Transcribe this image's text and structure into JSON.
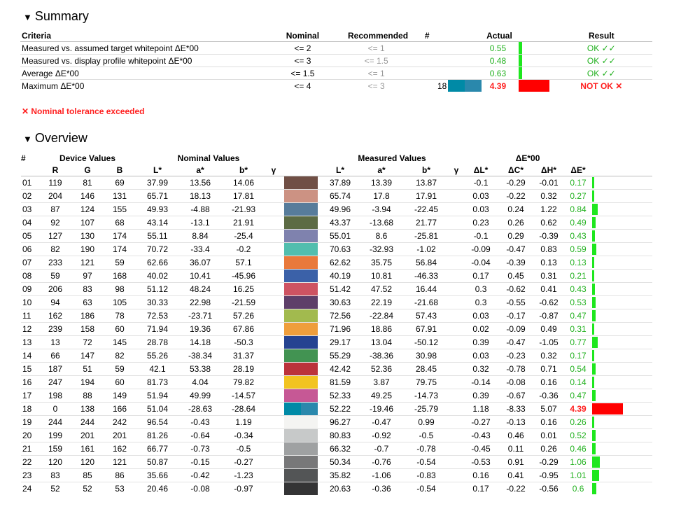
{
  "summary": {
    "title": "Summary",
    "headers": [
      "Criteria",
      "Nominal",
      "Recommended",
      "#",
      "Actual",
      "Result"
    ],
    "rows": [
      {
        "criteria": "Measured vs. assumed target whitepoint ΔE*00",
        "nominal": "<= 2",
        "recommended": "<= 1",
        "num": "",
        "actual": "0.55",
        "result": "OK ✓✓",
        "pass": true,
        "bar_fraction": 0.12,
        "swatch": ""
      },
      {
        "criteria": "Measured vs. display profile whitepoint ΔE*00",
        "nominal": "<= 3",
        "recommended": "<= 1.5",
        "num": "",
        "actual": "0.48",
        "result": "OK ✓✓",
        "pass": true,
        "bar_fraction": 0.12,
        "swatch": ""
      },
      {
        "criteria": "Average ΔE*00",
        "nominal": "<= 1.5",
        "recommended": "<= 1",
        "num": "",
        "actual": "0.63",
        "result": "OK ✓✓",
        "pass": true,
        "bar_fraction": 0.12,
        "swatch": ""
      },
      {
        "criteria": "Maximum ΔE*00",
        "nominal": "<= 4",
        "recommended": "<= 3",
        "num": "18",
        "actual": "4.39",
        "result": "NOT OK ✕",
        "pass": false,
        "bar_fraction": 1.0,
        "swatch": "#1f8aa8"
      }
    ],
    "tolerance_message": "✕ Nominal tolerance exceeded"
  },
  "overview": {
    "title": "Overview",
    "group_headers": {
      "num": "#",
      "device": "Device Values",
      "nominal": "Nominal Values",
      "measured": "Measured Values",
      "delta": "ΔE*00"
    },
    "sub_headers": [
      "R",
      "G",
      "B",
      "L*",
      "a*",
      "b*",
      "γ",
      "L*",
      "a*",
      "b*",
      "γ",
      "ΔL*",
      "ΔC*",
      "ΔH*",
      "ΔE*"
    ],
    "rows": [
      {
        "id": "01",
        "r": "119",
        "g": "81",
        "b": "69",
        "nl": "37.99",
        "na": "13.56",
        "nb": "14.06",
        "ml": "37.89",
        "ma": "13.39",
        "mb": "13.87",
        "dl": "-0.1",
        "dc": "-0.29",
        "dh": "-0.01",
        "de": "0.17",
        "color": "#704f45",
        "de_value": 0.17
      },
      {
        "id": "02",
        "r": "204",
        "g": "146",
        "b": "131",
        "nl": "65.71",
        "na": "18.13",
        "nb": "17.81",
        "ml": "65.74",
        "ma": "17.8",
        "mb": "17.91",
        "dl": "0.03",
        "dc": "-0.22",
        "dh": "0.32",
        "de": "0.27",
        "color": "#cc9283",
        "de_value": 0.27
      },
      {
        "id": "03",
        "r": "87",
        "g": "124",
        "b": "155",
        "nl": "49.93",
        "na": "-4.88",
        "nb": "-21.93",
        "ml": "49.96",
        "ma": "-3.94",
        "mb": "-22.45",
        "dl": "0.03",
        "dc": "0.24",
        "dh": "1.22",
        "de": "0.84",
        "color": "#577c9b",
        "de_value": 0.84
      },
      {
        "id": "04",
        "r": "92",
        "g": "107",
        "b": "68",
        "nl": "43.14",
        "na": "-13.1",
        "nb": "21.91",
        "ml": "43.37",
        "ma": "-13.68",
        "mb": "21.77",
        "dl": "0.23",
        "dc": "0.26",
        "dh": "0.62",
        "de": "0.49",
        "color": "#5c6b44",
        "de_value": 0.49
      },
      {
        "id": "05",
        "r": "127",
        "g": "130",
        "b": "174",
        "nl": "55.11",
        "na": "8.84",
        "nb": "-25.4",
        "ml": "55.01",
        "ma": "8.6",
        "mb": "-25.81",
        "dl": "-0.1",
        "dc": "0.29",
        "dh": "-0.39",
        "de": "0.43",
        "color": "#7f82ae",
        "de_value": 0.43
      },
      {
        "id": "06",
        "r": "82",
        "g": "190",
        "b": "174",
        "nl": "70.72",
        "na": "-33.4",
        "nb": "-0.2",
        "ml": "70.63",
        "ma": "-32.93",
        "mb": "-1.02",
        "dl": "-0.09",
        "dc": "-0.47",
        "dh": "0.83",
        "de": "0.59",
        "color": "#52beae",
        "de_value": 0.59
      },
      {
        "id": "07",
        "r": "233",
        "g": "121",
        "b": "59",
        "nl": "62.66",
        "na": "36.07",
        "nb": "57.1",
        "ml": "62.62",
        "ma": "35.75",
        "mb": "56.84",
        "dl": "-0.04",
        "dc": "-0.39",
        "dh": "0.13",
        "de": "0.13",
        "color": "#e9793b",
        "de_value": 0.13
      },
      {
        "id": "08",
        "r": "59",
        "g": "97",
        "b": "168",
        "nl": "40.02",
        "na": "10.41",
        "nb": "-45.96",
        "ml": "40.19",
        "ma": "10.81",
        "mb": "-46.33",
        "dl": "0.17",
        "dc": "0.45",
        "dh": "0.31",
        "de": "0.21",
        "color": "#3b61a8",
        "de_value": 0.21
      },
      {
        "id": "09",
        "r": "206",
        "g": "83",
        "b": "98",
        "nl": "51.12",
        "na": "48.24",
        "nb": "16.25",
        "ml": "51.42",
        "ma": "47.52",
        "mb": "16.44",
        "dl": "0.3",
        "dc": "-0.62",
        "dh": "0.41",
        "de": "0.43",
        "color": "#ce5362",
        "de_value": 0.43
      },
      {
        "id": "10",
        "r": "94",
        "g": "63",
        "b": "105",
        "nl": "30.33",
        "na": "22.98",
        "nb": "-21.59",
        "ml": "30.63",
        "ma": "22.19",
        "mb": "-21.68",
        "dl": "0.3",
        "dc": "-0.55",
        "dh": "-0.62",
        "de": "0.53",
        "color": "#5e3f69",
        "de_value": 0.53
      },
      {
        "id": "11",
        "r": "162",
        "g": "186",
        "b": "78",
        "nl": "72.53",
        "na": "-23.71",
        "nb": "57.26",
        "ml": "72.56",
        "ma": "-22.84",
        "mb": "57.43",
        "dl": "0.03",
        "dc": "-0.17",
        "dh": "-0.87",
        "de": "0.47",
        "color": "#a2ba4e",
        "de_value": 0.47
      },
      {
        "id": "12",
        "r": "239",
        "g": "158",
        "b": "60",
        "nl": "71.94",
        "na": "19.36",
        "nb": "67.86",
        "ml": "71.96",
        "ma": "18.86",
        "mb": "67.91",
        "dl": "0.02",
        "dc": "-0.09",
        "dh": "0.49",
        "de": "0.31",
        "color": "#ef9e3c",
        "de_value": 0.31
      },
      {
        "id": "13",
        "r": "13",
        "g": "72",
        "b": "145",
        "nl": "28.78",
        "na": "14.18",
        "nb": "-50.3",
        "ml": "29.17",
        "ma": "13.04",
        "mb": "-50.12",
        "dl": "0.39",
        "dc": "-0.47",
        "dh": "-1.05",
        "de": "0.77",
        "color": "#254391",
        "de_value": 0.77
      },
      {
        "id": "14",
        "r": "66",
        "g": "147",
        "b": "82",
        "nl": "55.26",
        "na": "-38.34",
        "nb": "31.37",
        "ml": "55.29",
        "ma": "-38.36",
        "mb": "30.98",
        "dl": "0.03",
        "dc": "-0.23",
        "dh": "0.32",
        "de": "0.17",
        "color": "#429352",
        "de_value": 0.17
      },
      {
        "id": "15",
        "r": "187",
        "g": "51",
        "b": "59",
        "nl": "42.1",
        "na": "53.38",
        "nb": "28.19",
        "ml": "42.42",
        "ma": "52.36",
        "mb": "28.45",
        "dl": "0.32",
        "dc": "-0.78",
        "dh": "0.71",
        "de": "0.54",
        "color": "#bb333b",
        "de_value": 0.54
      },
      {
        "id": "16",
        "r": "247",
        "g": "194",
        "b": "60",
        "nl": "81.73",
        "na": "4.04",
        "nb": "79.82",
        "ml": "81.59",
        "ma": "3.87",
        "mb": "79.75",
        "dl": "-0.14",
        "dc": "-0.08",
        "dh": "0.16",
        "de": "0.14",
        "color": "#f2c420",
        "de_value": 0.14
      },
      {
        "id": "17",
        "r": "198",
        "g": "88",
        "b": "149",
        "nl": "51.94",
        "na": "49.99",
        "nb": "-14.57",
        "ml": "52.33",
        "ma": "49.25",
        "mb": "-14.73",
        "dl": "0.39",
        "dc": "-0.67",
        "dh": "-0.36",
        "de": "0.47",
        "color": "#c65895",
        "de_value": 0.47
      },
      {
        "id": "18",
        "r": "0",
        "g": "138",
        "b": "166",
        "nl": "51.04",
        "na": "-28.63",
        "nb": "-28.64",
        "ml": "52.22",
        "ma": "-19.46",
        "mb": "-25.79",
        "dl": "1.18",
        "dc": "-8.33",
        "dh": "5.07",
        "de": "4.39",
        "color": "#008aa6",
        "color2": "#2a88ac",
        "de_value": 4.39
      },
      {
        "id": "19",
        "r": "244",
        "g": "244",
        "b": "242",
        "nl": "96.54",
        "na": "-0.43",
        "nb": "1.19",
        "ml": "96.27",
        "ma": "-0.47",
        "mb": "0.99",
        "dl": "-0.27",
        "dc": "-0.13",
        "dh": "0.16",
        "de": "0.26",
        "color": "#f4f4f2",
        "de_value": 0.26
      },
      {
        "id": "20",
        "r": "199",
        "g": "201",
        "b": "201",
        "nl": "81.26",
        "na": "-0.64",
        "nb": "-0.34",
        "ml": "80.83",
        "ma": "-0.92",
        "mb": "-0.5",
        "dl": "-0.43",
        "dc": "0.46",
        "dh": "0.01",
        "de": "0.52",
        "color": "#c7c9c9",
        "de_value": 0.52
      },
      {
        "id": "21",
        "r": "159",
        "g": "161",
        "b": "162",
        "nl": "66.77",
        "na": "-0.73",
        "nb": "-0.5",
        "ml": "66.32",
        "ma": "-0.7",
        "mb": "-0.78",
        "dl": "-0.45",
        "dc": "0.11",
        "dh": "0.26",
        "de": "0.46",
        "color": "#9fa1a2",
        "de_value": 0.46
      },
      {
        "id": "22",
        "r": "120",
        "g": "120",
        "b": "121",
        "nl": "50.87",
        "na": "-0.15",
        "nb": "-0.27",
        "ml": "50.34",
        "ma": "-0.76",
        "mb": "-0.54",
        "dl": "-0.53",
        "dc": "0.91",
        "dh": "-0.29",
        "de": "1.06",
        "color": "#787879",
        "de_value": 1.06
      },
      {
        "id": "23",
        "r": "83",
        "g": "85",
        "b": "86",
        "nl": "35.66",
        "na": "-0.42",
        "nb": "-1.23",
        "ml": "35.82",
        "ma": "-1.06",
        "mb": "-0.83",
        "dl": "0.16",
        "dc": "0.41",
        "dh": "-0.95",
        "de": "1.01",
        "color": "#535556",
        "de_value": 1.01
      },
      {
        "id": "24",
        "r": "52",
        "g": "52",
        "b": "53",
        "nl": "20.46",
        "na": "-0.08",
        "nb": "-0.97",
        "ml": "20.63",
        "ma": "-0.36",
        "mb": "-0.54",
        "dl": "0.17",
        "dc": "-0.22",
        "dh": "-0.56",
        "de": "0.6",
        "color": "#343435",
        "de_value": 0.6
      }
    ]
  },
  "colors": {
    "pass": "#22b11f",
    "fail": "#ff1f1f",
    "bar_pass": "#1ee71e",
    "bar_fail": "#ff0000"
  }
}
